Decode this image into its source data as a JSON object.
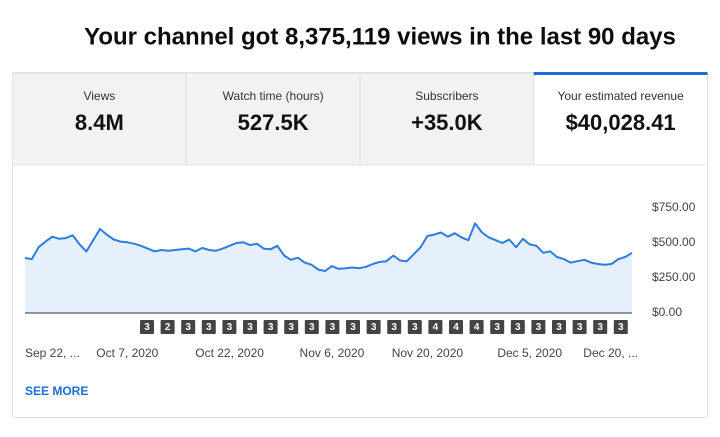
{
  "header": {
    "title": "Your channel got 8,375,119 views in the last 90 days"
  },
  "tabs": [
    {
      "label": "Views",
      "value": "8.4M"
    },
    {
      "label": "Watch time (hours)",
      "value": "527.5K"
    },
    {
      "label": "Subscribers",
      "value": "+35.0K"
    },
    {
      "label": "Your estimated revenue",
      "value": "$40,028.41"
    }
  ],
  "chart_data": {
    "type": "line",
    "color": "#2b7de0",
    "area_color": "#e6f0fc",
    "grid": false,
    "categories": [
      "Sep 22, ...",
      null,
      null,
      null,
      null,
      null,
      null,
      null,
      null,
      null,
      null,
      null,
      null,
      null,
      null,
      "Oct 7, 2020",
      null,
      null,
      null,
      null,
      null,
      null,
      null,
      null,
      null,
      null,
      null,
      null,
      null,
      null,
      "Oct 22, 2020",
      null,
      null,
      null,
      null,
      null,
      null,
      null,
      null,
      null,
      null,
      null,
      null,
      null,
      null,
      "Nov 6, 2020",
      null,
      null,
      null,
      null,
      null,
      null,
      null,
      null,
      null,
      null,
      null,
      null,
      null,
      "Nov 20, 2020",
      null,
      null,
      null,
      null,
      null,
      null,
      null,
      null,
      null,
      null,
      null,
      null,
      null,
      null,
      "Dec 5, 2020",
      null,
      null,
      null,
      null,
      null,
      null,
      null,
      null,
      null,
      null,
      null,
      null,
      null,
      null,
      "Dec 20, ..."
    ],
    "values": [
      393,
      385,
      470,
      510,
      545,
      530,
      535,
      555,
      490,
      440,
      520,
      600,
      560,
      525,
      510,
      505,
      495,
      480,
      460,
      440,
      450,
      445,
      450,
      455,
      460,
      440,
      465,
      450,
      445,
      460,
      480,
      500,
      505,
      485,
      495,
      460,
      455,
      480,
      410,
      380,
      395,
      360,
      345,
      310,
      300,
      335,
      315,
      320,
      325,
      320,
      330,
      350,
      365,
      370,
      410,
      375,
      370,
      420,
      470,
      550,
      560,
      575,
      545,
      570,
      540,
      520,
      640,
      575,
      540,
      520,
      500,
      525,
      470,
      530,
      490,
      480,
      430,
      440,
      400,
      385,
      360,
      370,
      380,
      360,
      350,
      345,
      350,
      385,
      400,
      430
    ],
    "ylim": [
      0,
      750
    ],
    "yticks": [
      {
        "value": 0,
        "label": "$0.00"
      },
      {
        "value": 250,
        "label": "$250.00"
      },
      {
        "value": 500,
        "label": "$500.00"
      },
      {
        "value": 750,
        "label": "$750.00"
      }
    ],
    "annotations": [
      3,
      2,
      3,
      3,
      3,
      3,
      3,
      3,
      3,
      3,
      3,
      3,
      3,
      3,
      4,
      4,
      4,
      3,
      3,
      3,
      3,
      3,
      3,
      3
    ]
  },
  "footer": {
    "link": "SEE MORE"
  }
}
